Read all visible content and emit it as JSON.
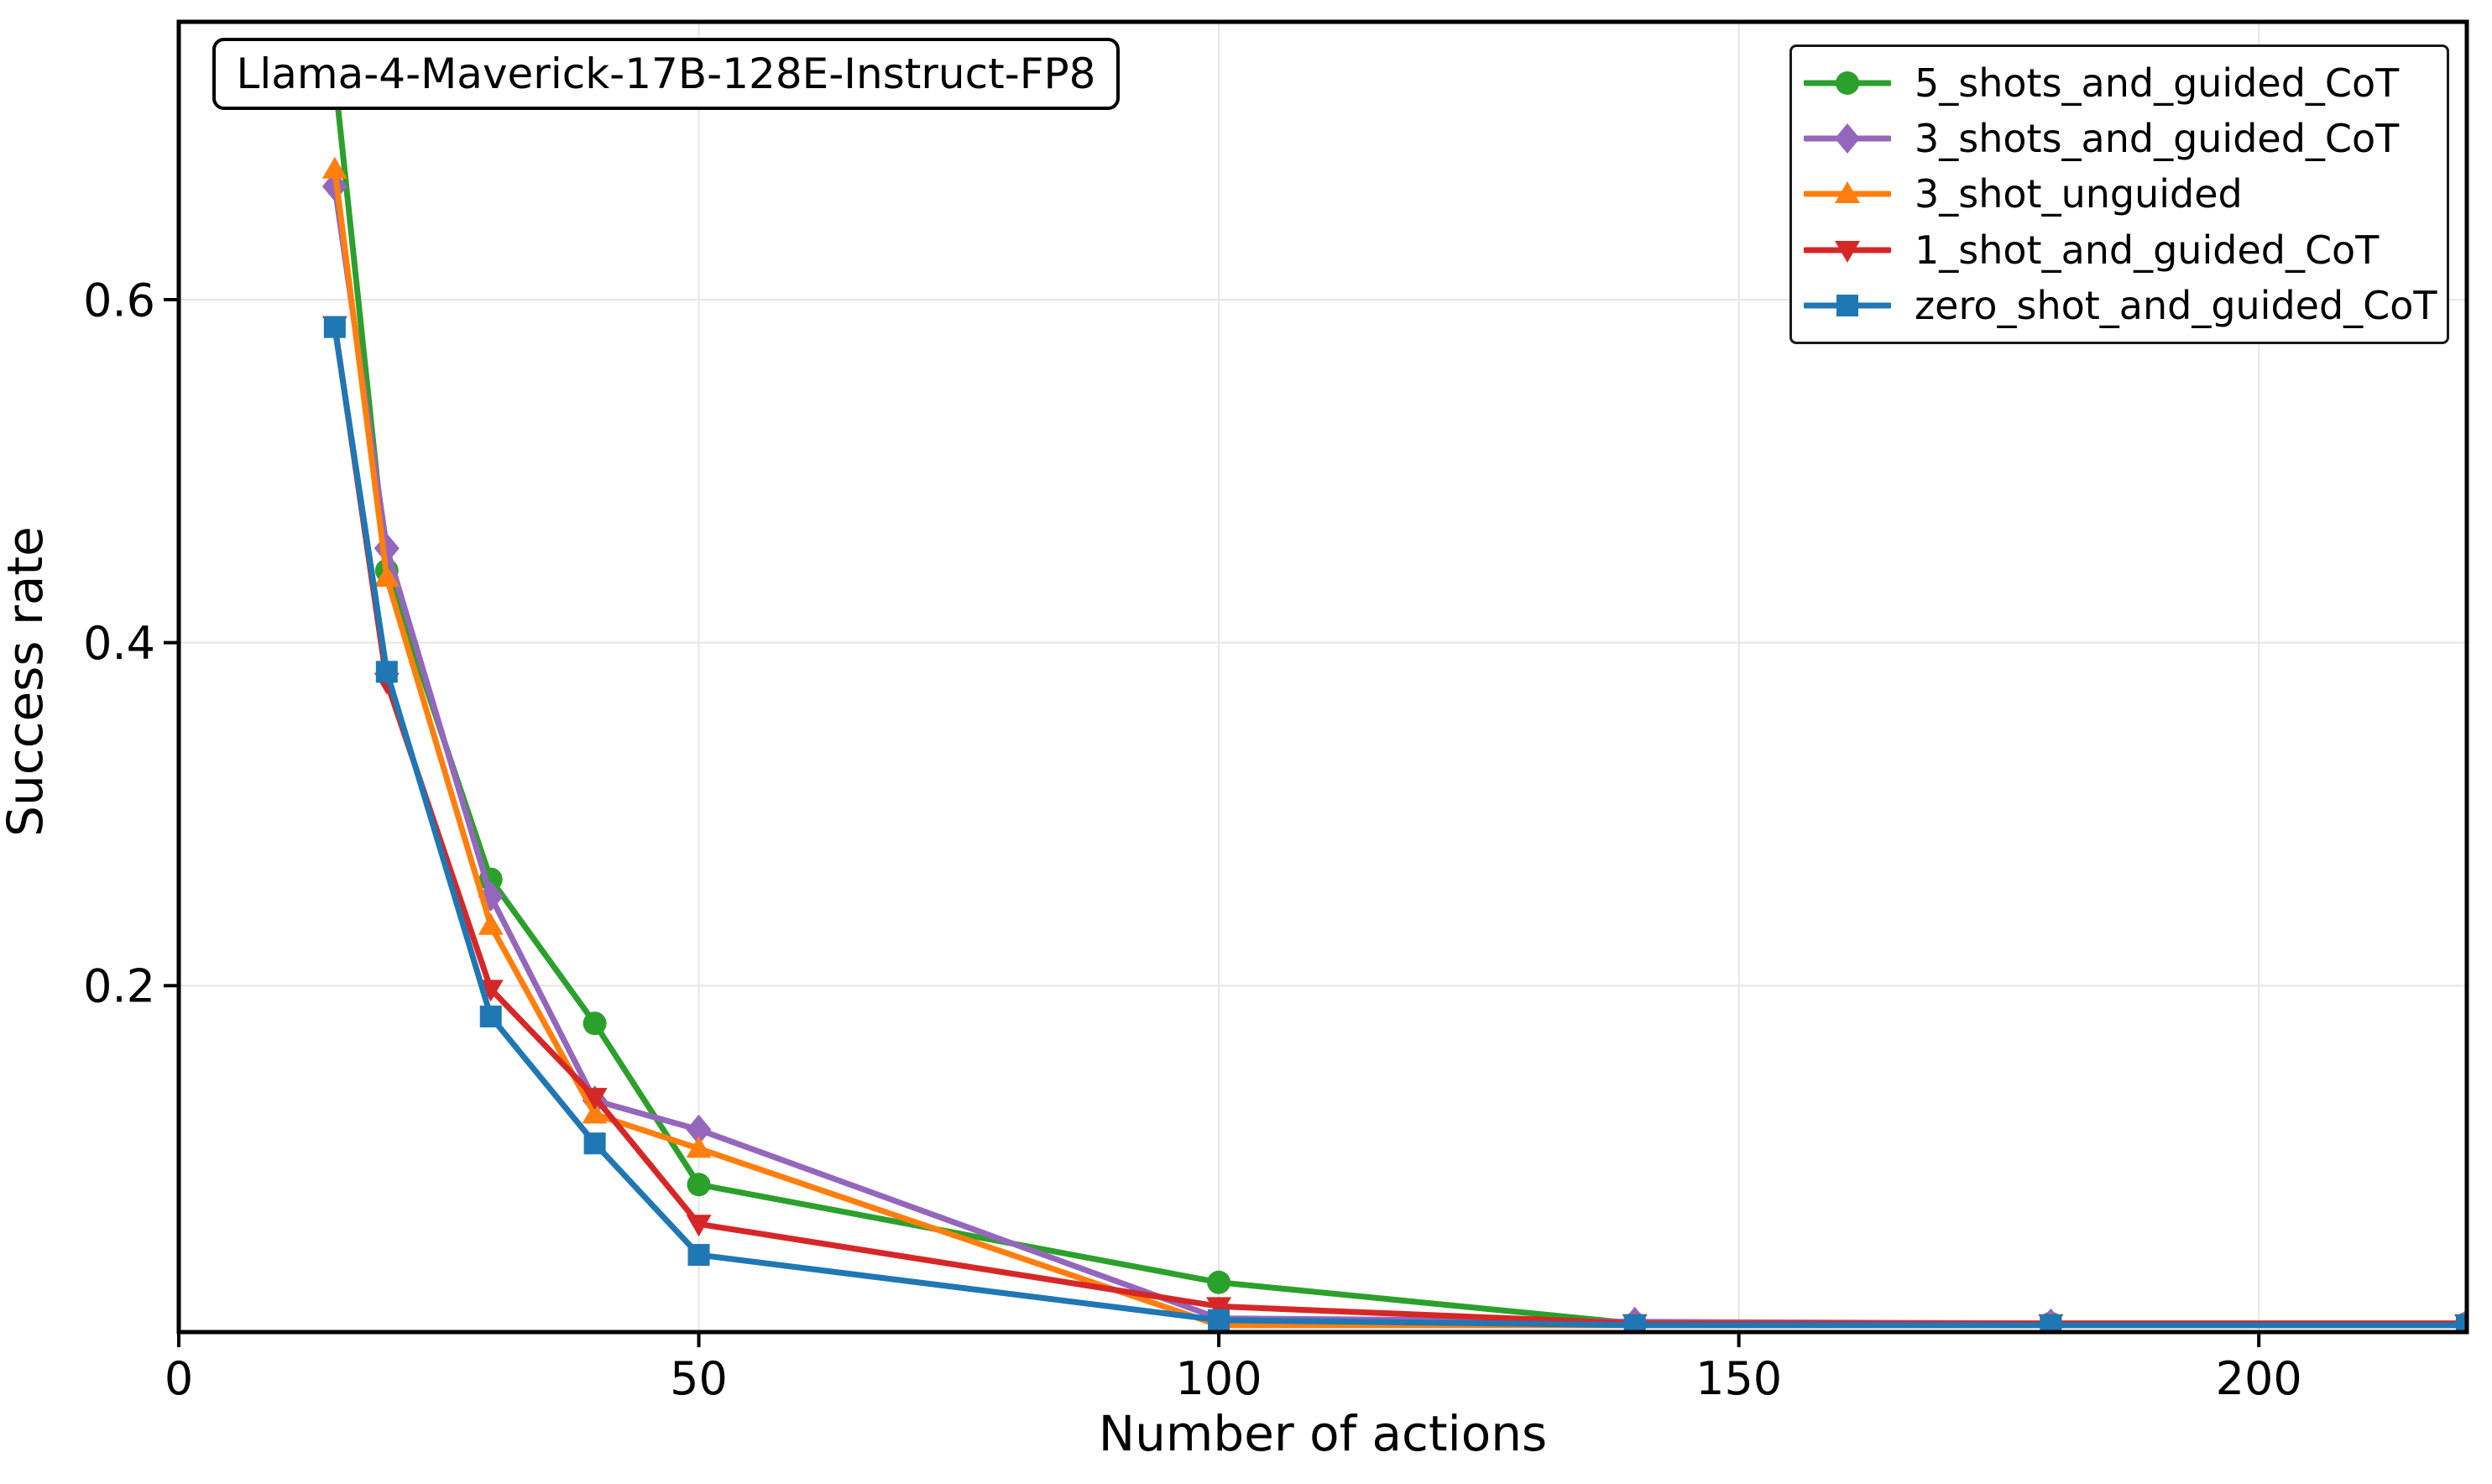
{
  "chart_data": {
    "type": "line",
    "title": "Llama-4-Maverick-17B-128E-Instruct-FP8",
    "xlabel": "Number of actions",
    "ylabel": "Success rate",
    "xlim": [
      0,
      220
    ],
    "ylim": [
      -0.002,
      0.762
    ],
    "xticks": [
      0,
      50,
      100,
      150,
      200
    ],
    "yticks": [
      0.2,
      0.4,
      0.6
    ],
    "grid": true,
    "grid_color": "#e5e5e5",
    "axis_color": "#000000",
    "legend_position": "upper right",
    "x": [
      15,
      20,
      30,
      40,
      50,
      100,
      140,
      180,
      220
    ],
    "series": [
      {
        "name": "5_shots_and_guided_CoT",
        "color": "#2ca02c",
        "marker": "circle",
        "values": [
          0.73,
          0.442,
          0.262,
          0.178,
          0.084,
          0.027,
          0.003,
          0.003,
          0.003
        ]
      },
      {
        "name": "3_shots_and_guided_CoT",
        "color": "#9467bd",
        "marker": "diamond",
        "values": [
          0.666,
          0.455,
          0.252,
          0.133,
          0.116,
          0.006,
          0.004,
          0.003,
          0.003
        ]
      },
      {
        "name": "3_shot_unguided",
        "color": "#ff7f0e",
        "marker": "triangle-up",
        "values": [
          0.676,
          0.438,
          0.235,
          0.125,
          0.105,
          0.002,
          0.002,
          0.002,
          0.002
        ]
      },
      {
        "name": "1_shot_and_guided_CoT",
        "color": "#d62728",
        "marker": "triangle-down",
        "values": [
          0.585,
          0.377,
          0.198,
          0.135,
          0.061,
          0.013,
          0.003,
          0.003,
          0.003
        ]
      },
      {
        "name": "zero_shot_and_guided_CoT",
        "color": "#1f77b4",
        "marker": "square",
        "values": [
          0.584,
          0.383,
          0.182,
          0.108,
          0.043,
          0.005,
          0.002,
          0.002,
          0.002
        ]
      }
    ]
  }
}
